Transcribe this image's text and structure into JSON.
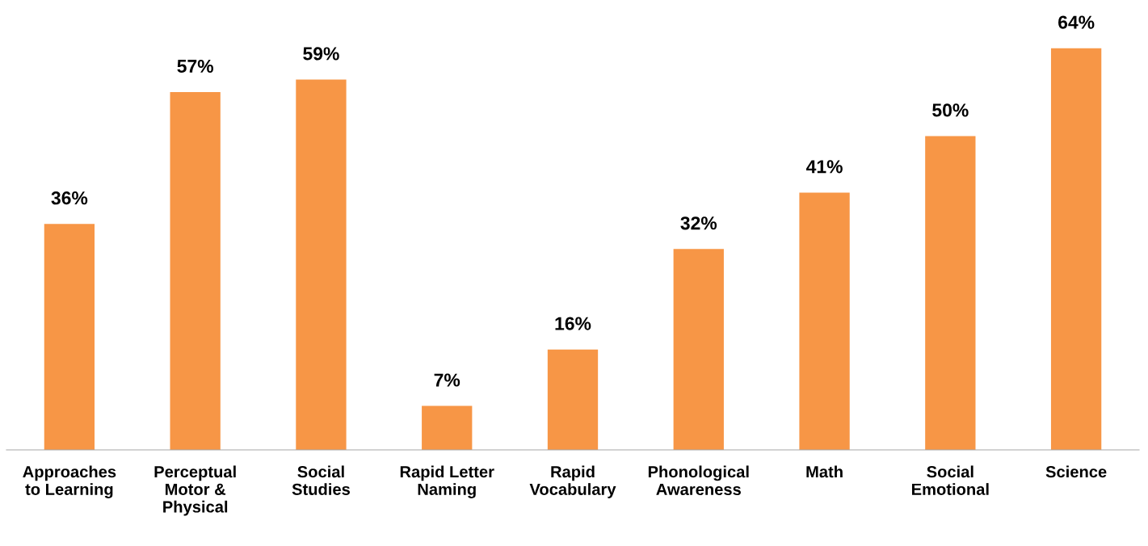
{
  "chart_data": {
    "type": "bar",
    "categories": [
      "Approaches\nto Learning",
      "Perceptual\nMotor &\nPhysical",
      "Social\nStudies",
      "Rapid Letter\nNaming",
      "Rapid\nVocabulary",
      "Phonological\nAwareness",
      "Math",
      "Social\nEmotional",
      "Science"
    ],
    "values": [
      36,
      57,
      59,
      7,
      16,
      32,
      41,
      50,
      64
    ],
    "value_labels": [
      "36%",
      "57%",
      "59%",
      "7%",
      "16%",
      "32%",
      "41%",
      "50%",
      "64%"
    ],
    "color": "#f79646",
    "grid": false,
    "legend": false
  }
}
